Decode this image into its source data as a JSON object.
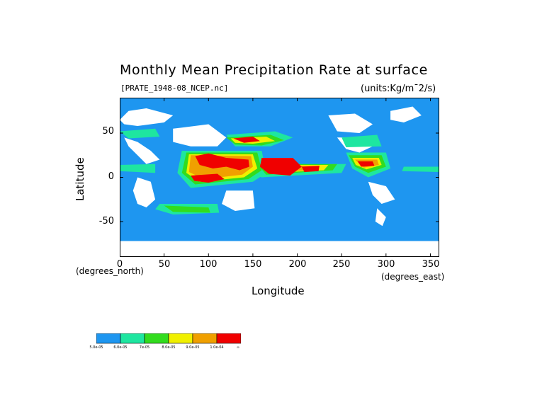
{
  "figure": {
    "title": "Monthly Mean Precipitation Rate at surface",
    "file": "[PRATE_1948-08_NCEP.nc]",
    "units": "(units:Kg/m¯2/s)"
  },
  "axes": {
    "ylabel": "Latitude",
    "xlabel": "Longitude",
    "x_sub_left": "(degrees_north)",
    "x_sub_right": "(degrees_east)",
    "yticks": [
      "50",
      "0",
      "-50"
    ],
    "xticks": [
      "0",
      "50",
      "100",
      "150",
      "200",
      "250",
      "300",
      "350"
    ]
  },
  "colorbar": {
    "colors": [
      "#1e96f0",
      "#1ee6a0",
      "#32dc1e",
      "#f0f000",
      "#f0a000",
      "#f00000"
    ],
    "labels": [
      "5.0e-05",
      "6.0e-05",
      "7e-05",
      "8.0e-05",
      "9.0e-05",
      "1.0e-04",
      "∞"
    ]
  },
  "chart_data": {
    "type": "heatmap",
    "title": "Monthly Mean Precipitation Rate at surface",
    "xlabel": "Longitude",
    "ylabel": "Latitude",
    "xlim": [
      0,
      360
    ],
    "ylim": [
      -90,
      90
    ],
    "xticks": [
      0,
      50,
      100,
      150,
      200,
      250,
      300,
      350
    ],
    "yticks": [
      50,
      0,
      -50
    ],
    "levels": [
      5e-05,
      6e-05,
      7e-05,
      8e-05,
      9e-05,
      0.0001
    ],
    "colors": [
      "#1e96f0",
      "#1ee6a0",
      "#32dc1e",
      "#f0f000",
      "#f0a000",
      "#f00000"
    ],
    "background_color": "#1e96f0",
    "no_data_color": "#ffffff",
    "regions": [
      {
        "level": 0,
        "poly": [
          [
            0,
            65
          ],
          [
            10,
            75
          ],
          [
            30,
            78
          ],
          [
            60,
            70
          ],
          [
            50,
            62
          ],
          [
            20,
            58
          ],
          [
            5,
            60
          ]
        ]
      },
      {
        "level": 0,
        "poly": [
          [
            5,
            45
          ],
          [
            20,
            40
          ],
          [
            35,
            30
          ],
          [
            45,
            20
          ],
          [
            30,
            15
          ],
          [
            20,
            25
          ],
          [
            10,
            35
          ]
        ]
      },
      {
        "level": 0,
        "poly": [
          [
            20,
            0
          ],
          [
            35,
            -5
          ],
          [
            40,
            -25
          ],
          [
            30,
            -34
          ],
          [
            20,
            -30
          ],
          [
            15,
            -15
          ]
        ]
      },
      {
        "level": 0,
        "poly": [
          [
            60,
            55
          ],
          [
            100,
            60
          ],
          [
            120,
            45
          ],
          [
            110,
            35
          ],
          [
            80,
            35
          ],
          [
            60,
            40
          ]
        ]
      },
      {
        "level": 0,
        "poly": [
          [
            120,
            -15
          ],
          [
            150,
            -15
          ],
          [
            152,
            -35
          ],
          [
            130,
            -38
          ],
          [
            115,
            -30
          ]
        ]
      },
      {
        "level": 0,
        "poly": [
          [
            235,
            70
          ],
          [
            265,
            72
          ],
          [
            285,
            60
          ],
          [
            270,
            50
          ],
          [
            245,
            52
          ]
        ]
      },
      {
        "level": 0,
        "poly": [
          [
            245,
            45
          ],
          [
            270,
            45
          ],
          [
            285,
            35
          ],
          [
            270,
            28
          ],
          [
            255,
            32
          ]
        ]
      },
      {
        "level": 0,
        "poly": [
          [
            280,
            -5
          ],
          [
            300,
            -10
          ],
          [
            310,
            -25
          ],
          [
            295,
            -30
          ],
          [
            285,
            -20
          ]
        ]
      },
      {
        "level": 0,
        "poly": [
          [
            290,
            -35
          ],
          [
            300,
            -45
          ],
          [
            296,
            -55
          ],
          [
            288,
            -50
          ]
        ]
      },
      {
        "level": 0,
        "poly": [
          [
            305,
            75
          ],
          [
            330,
            80
          ],
          [
            340,
            70
          ],
          [
            320,
            62
          ],
          [
            305,
            65
          ]
        ]
      },
      {
        "level": 0,
        "poly": [
          [
            0,
            -72
          ],
          [
            360,
            -72
          ],
          [
            360,
            -90
          ],
          [
            0,
            -90
          ]
        ]
      },
      {
        "level": 1,
        "poly": [
          [
            0,
            14
          ],
          [
            40,
            15
          ],
          [
            40,
            5
          ],
          [
            0,
            7
          ]
        ]
      },
      {
        "level": 1,
        "poly": [
          [
            70,
            30
          ],
          [
            160,
            30
          ],
          [
            165,
            5
          ],
          [
            150,
            -5
          ],
          [
            80,
            -12
          ],
          [
            65,
            5
          ]
        ]
      },
      {
        "level": 1,
        "poly": [
          [
            140,
            15
          ],
          [
            255,
            15
          ],
          [
            250,
            5
          ],
          [
            160,
            0
          ],
          [
            140,
            5
          ]
        ]
      },
      {
        "level": 1,
        "poly": [
          [
            255,
            28
          ],
          [
            300,
            28
          ],
          [
            305,
            10
          ],
          [
            280,
            0
          ],
          [
            262,
            10
          ]
        ]
      },
      {
        "level": 1,
        "poly": [
          [
            120,
            48
          ],
          [
            175,
            52
          ],
          [
            195,
            45
          ],
          [
            170,
            35
          ],
          [
            130,
            35
          ]
        ]
      },
      {
        "level": 1,
        "poly": [
          [
            0,
            52
          ],
          [
            40,
            55
          ],
          [
            45,
            46
          ],
          [
            10,
            44
          ]
        ]
      },
      {
        "level": 1,
        "poly": [
          [
            45,
            -30
          ],
          [
            110,
            -30
          ],
          [
            112,
            -40
          ],
          [
            60,
            -42
          ],
          [
            40,
            -36
          ]
        ]
      },
      {
        "level": 1,
        "poly": [
          [
            250,
            45
          ],
          [
            290,
            48
          ],
          [
            295,
            35
          ],
          [
            255,
            34
          ]
        ]
      },
      {
        "level": 1,
        "poly": [
          [
            320,
            12
          ],
          [
            360,
            12
          ],
          [
            360,
            6
          ],
          [
            318,
            7
          ]
        ]
      },
      {
        "level": 2,
        "poly": [
          [
            75,
            28
          ],
          [
            155,
            28
          ],
          [
            160,
            8
          ],
          [
            145,
            -2
          ],
          [
            85,
            -8
          ],
          [
            70,
            5
          ]
        ]
      },
      {
        "level": 2,
        "poly": [
          [
            155,
            15
          ],
          [
            245,
            15
          ],
          [
            240,
            8
          ],
          [
            165,
            3
          ]
        ]
      },
      {
        "level": 2,
        "poly": [
          [
            258,
            25
          ],
          [
            295,
            25
          ],
          [
            300,
            12
          ],
          [
            280,
            5
          ],
          [
            265,
            12
          ]
        ]
      },
      {
        "level": 2,
        "poly": [
          [
            120,
            45
          ],
          [
            170,
            48
          ],
          [
            185,
            42
          ],
          [
            160,
            36
          ],
          [
            130,
            37
          ]
        ]
      },
      {
        "level": 2,
        "poly": [
          [
            50,
            -32
          ],
          [
            100,
            -34
          ],
          [
            102,
            -40
          ],
          [
            60,
            -39
          ]
        ]
      },
      {
        "level": 3,
        "poly": [
          [
            78,
            26
          ],
          [
            150,
            26
          ],
          [
            155,
            10
          ],
          [
            140,
            0
          ],
          [
            90,
            -5
          ],
          [
            75,
            5
          ]
        ]
      },
      {
        "level": 3,
        "poly": [
          [
            160,
            14
          ],
          [
            235,
            14
          ],
          [
            230,
            8
          ],
          [
            170,
            5
          ]
        ]
      },
      {
        "level": 3,
        "poly": [
          [
            262,
            22
          ],
          [
            292,
            22
          ],
          [
            295,
            14
          ],
          [
            278,
            9
          ],
          [
            266,
            14
          ]
        ]
      },
      {
        "level": 3,
        "poly": [
          [
            125,
            44
          ],
          [
            165,
            46
          ],
          [
            175,
            41
          ],
          [
            150,
            38
          ],
          [
            130,
            39
          ]
        ]
      },
      {
        "level": 4,
        "poly": [
          [
            80,
            25
          ],
          [
            148,
            24
          ],
          [
            150,
            12
          ],
          [
            138,
            3
          ],
          [
            95,
            -2
          ],
          [
            78,
            6
          ]
        ]
      },
      {
        "level": 4,
        "poly": [
          [
            165,
            13
          ],
          [
            225,
            13
          ],
          [
            222,
            8
          ],
          [
            172,
            7
          ]
        ]
      },
      {
        "level": 4,
        "poly": [
          [
            265,
            20
          ],
          [
            290,
            20
          ],
          [
            292,
            14
          ],
          [
            275,
            11
          ]
        ]
      },
      {
        "level": 5,
        "poly": [
          [
            85,
            24
          ],
          [
            100,
            27
          ],
          [
            120,
            22
          ],
          [
            145,
            20
          ],
          [
            146,
            12
          ],
          [
            135,
            8
          ],
          [
            120,
            12
          ],
          [
            105,
            10
          ],
          [
            90,
            14
          ]
        ]
      },
      {
        "level": 5,
        "poly": [
          [
            80,
            2
          ],
          [
            110,
            4
          ],
          [
            118,
            -2
          ],
          [
            100,
            -6
          ],
          [
            84,
            -4
          ]
        ]
      },
      {
        "level": 5,
        "poly": [
          [
            160,
            22
          ],
          [
            195,
            22
          ],
          [
            205,
            12
          ],
          [
            192,
            2
          ],
          [
            168,
            4
          ],
          [
            158,
            12
          ]
        ]
      },
      {
        "level": 5,
        "poly": [
          [
            205,
            12
          ],
          [
            225,
            13
          ],
          [
            224,
            7
          ],
          [
            208,
            6
          ]
        ]
      },
      {
        "level": 5,
        "poly": [
          [
            128,
            44
          ],
          [
            150,
            46
          ],
          [
            158,
            41
          ],
          [
            140,
            39
          ]
        ]
      },
      {
        "level": 5,
        "poly": [
          [
            268,
            18
          ],
          [
            285,
            18
          ],
          [
            287,
            13
          ],
          [
            272,
            12
          ]
        ]
      }
    ]
  }
}
